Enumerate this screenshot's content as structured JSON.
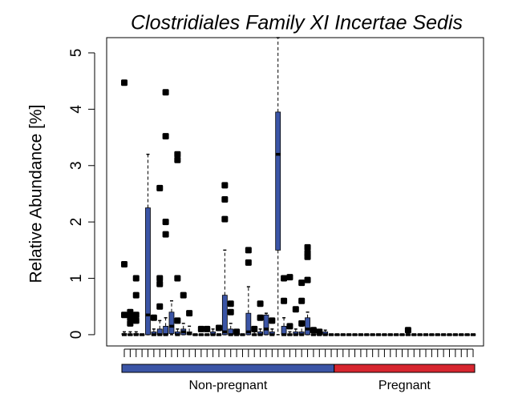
{
  "chart_data": {
    "type": "box",
    "title": "Clostridiales Family XI Incertae Sedis",
    "y_label": "Relative Abundance [%]",
    "ylim": [
      -0.2,
      5.27
    ],
    "yticks": [
      0,
      1,
      2,
      3,
      4,
      5
    ],
    "box_color": "#3b55a6",
    "groups": [
      {
        "name": "Non-pregnant",
        "color": "#3b55a6",
        "categories": [
          null,
          null,
          null,
          null,
          null,
          null,
          null,
          null,
          null,
          null,
          null,
          null,
          null,
          null,
          null,
          null,
          null,
          null,
          null,
          null,
          null,
          null,
          null,
          null,
          null,
          null,
          null,
          null,
          null,
          null,
          null,
          null,
          null,
          null,
          null,
          null
        ]
      },
      {
        "name": "Pregnant",
        "color": "#d7262f",
        "categories": [
          null,
          null,
          null,
          null,
          null,
          null,
          null,
          null,
          null,
          null,
          null,
          null,
          null,
          null,
          null,
          null,
          null,
          null,
          null,
          null,
          null,
          null,
          null,
          null
        ]
      }
    ],
    "boxes": [
      {
        "stats": [
          0,
          0,
          0,
          0.02,
          0.05
        ],
        "outliers": [
          4.47,
          1.25,
          0.35
        ]
      },
      {
        "stats": [
          0,
          0,
          0,
          0,
          0.05
        ],
        "outliers": [
          0.4,
          0.3,
          0.2
        ]
      },
      {
        "stats": [
          0,
          0,
          0,
          0.02,
          0.05
        ],
        "outliers": [
          1.0,
          0.7,
          0.35,
          0.25
        ]
      },
      {
        "stats": [
          0,
          0,
          0,
          0,
          0
        ],
        "outliers": []
      },
      {
        "stats": [
          0,
          0,
          0.35,
          2.25,
          3.2
        ],
        "outliers": []
      },
      {
        "stats": [
          0,
          0,
          0,
          0.05,
          0.1
        ],
        "outliers": [
          0.3
        ]
      },
      {
        "stats": [
          0,
          0,
          0,
          0.1,
          0.25
        ],
        "outliers": [
          2.6,
          1.0,
          0.9,
          0.5
        ]
      },
      {
        "stats": [
          0,
          0,
          0,
          0.15,
          0.3
        ],
        "outliers": [
          4.3,
          3.52,
          2.0,
          1.78
        ]
      },
      {
        "stats": [
          0,
          0.02,
          0.15,
          0.4,
          0.6
        ],
        "outliers": []
      },
      {
        "stats": [
          0,
          0,
          0,
          0.05,
          0.1
        ],
        "outliers": [
          3.2,
          3.1,
          1.0,
          0.25
        ]
      },
      {
        "stats": [
          0,
          0,
          0.05,
          0.1,
          0.2
        ],
        "outliers": [
          0.7
        ]
      },
      {
        "stats": [
          0,
          0,
          0.02,
          0.05,
          0.15
        ],
        "outliers": [
          0.38
        ]
      },
      {
        "stats": [
          0,
          0,
          0,
          0,
          0
        ],
        "outliers": []
      },
      {
        "stats": [
          0,
          0,
          0,
          0,
          0
        ],
        "outliers": [
          0.1
        ]
      },
      {
        "stats": [
          0,
          0,
          0,
          0,
          0
        ],
        "outliers": [
          0.1
        ]
      },
      {
        "stats": [
          0,
          0,
          0,
          0.05,
          0.1
        ],
        "outliers": []
      },
      {
        "stats": [
          0,
          0,
          0,
          0,
          0
        ],
        "outliers": [
          0.12
        ]
      },
      {
        "stats": [
          0,
          0,
          0.05,
          0.7,
          1.5
        ],
        "outliers": [
          2.65,
          2.4,
          2.05
        ]
      },
      {
        "stats": [
          0,
          0,
          0,
          0.1,
          0.2
        ],
        "outliers": [
          0.55,
          0.4
        ]
      },
      {
        "stats": [
          0,
          0,
          0,
          0,
          0
        ],
        "outliers": [
          0.05
        ]
      },
      {
        "stats": [
          0,
          0,
          0,
          0,
          0
        ],
        "outliers": []
      },
      {
        "stats": [
          0,
          0,
          0.05,
          0.38,
          0.85
        ],
        "outliers": [
          1.5,
          1.28
        ]
      },
      {
        "stats": [
          0,
          0,
          0,
          0,
          0.05
        ],
        "outliers": [
          0.1
        ]
      },
      {
        "stats": [
          0,
          0,
          0,
          0.05,
          0.1
        ],
        "outliers": [
          0.55,
          0.3
        ]
      },
      {
        "stats": [
          0,
          0,
          0.1,
          0.35,
          0.38
        ],
        "outliers": []
      },
      {
        "stats": [
          0,
          0,
          0,
          0.05,
          0.1
        ],
        "outliers": [
          0.25
        ]
      },
      {
        "stats": [
          0,
          1.5,
          3.2,
          3.95,
          5.27
        ],
        "outliers": []
      },
      {
        "stats": [
          0,
          0,
          0,
          0.15,
          0.3
        ],
        "outliers": [
          1.0,
          0.6
        ]
      },
      {
        "stats": [
          0,
          0,
          0,
          0,
          0.05
        ],
        "outliers": [
          1.02,
          0.15
        ]
      },
      {
        "stats": [
          0,
          0,
          0,
          0.05,
          0.1
        ],
        "outliers": [
          0.45
        ]
      },
      {
        "stats": [
          0,
          0,
          0,
          0.05,
          0.15
        ],
        "outliers": [
          0.92,
          0.6,
          0.2
        ]
      },
      {
        "stats": [
          0,
          0,
          0.1,
          0.3,
          0.4
        ],
        "outliers": [
          1.55,
          1.45,
          1.38,
          0.97
        ]
      },
      {
        "stats": [
          0,
          0,
          0,
          0,
          0
        ],
        "outliers": [
          0.08
        ]
      },
      {
        "stats": [
          0,
          0,
          0,
          0,
          0
        ],
        "outliers": [
          0.05
        ]
      },
      {
        "stats": [
          0,
          0,
          0,
          0.05,
          0.08
        ],
        "outliers": []
      },
      {
        "stats": [
          0,
          0,
          0,
          0,
          0
        ],
        "outliers": []
      },
      {
        "stats": [
          0,
          0,
          0,
          0,
          0
        ],
        "outliers": []
      },
      {
        "stats": [
          0,
          0,
          0,
          0,
          0
        ],
        "outliers": []
      },
      {
        "stats": [
          0,
          0,
          0,
          0,
          0
        ],
        "outliers": []
      },
      {
        "stats": [
          0,
          0,
          0,
          0,
          0
        ],
        "outliers": []
      },
      {
        "stats": [
          0,
          0,
          0,
          0,
          0
        ],
        "outliers": []
      },
      {
        "stats": [
          0,
          0,
          0,
          0,
          0
        ],
        "outliers": []
      },
      {
        "stats": [
          0,
          0,
          0,
          0,
          0
        ],
        "outliers": []
      },
      {
        "stats": [
          0,
          0,
          0,
          0,
          0
        ],
        "outliers": []
      },
      {
        "stats": [
          0,
          0,
          0,
          0,
          0
        ],
        "outliers": []
      },
      {
        "stats": [
          0,
          0,
          0,
          0,
          0
        ],
        "outliers": []
      },
      {
        "stats": [
          0,
          0,
          0,
          0,
          0
        ],
        "outliers": []
      },
      {
        "stats": [
          0,
          0,
          0,
          0,
          0
        ],
        "outliers": []
      },
      {
        "stats": [
          0,
          0,
          0,
          0,
          0.05
        ],
        "outliers": [
          0.08
        ]
      },
      {
        "stats": [
          0,
          0,
          0,
          0,
          0
        ],
        "outliers": []
      },
      {
        "stats": [
          0,
          0,
          0,
          0,
          0
        ],
        "outliers": []
      },
      {
        "stats": [
          0,
          0,
          0,
          0,
          0
        ],
        "outliers": []
      },
      {
        "stats": [
          0,
          0,
          0,
          0,
          0
        ],
        "outliers": []
      },
      {
        "stats": [
          0,
          0,
          0,
          0,
          0
        ],
        "outliers": []
      },
      {
        "stats": [
          0,
          0,
          0,
          0,
          0
        ],
        "outliers": []
      },
      {
        "stats": [
          0,
          0,
          0,
          0,
          0
        ],
        "outliers": []
      },
      {
        "stats": [
          0,
          0,
          0,
          0,
          0
        ],
        "outliers": []
      },
      {
        "stats": [
          0,
          0,
          0,
          0,
          0
        ],
        "outliers": []
      },
      {
        "stats": [
          0,
          0,
          0,
          0,
          0
        ],
        "outliers": []
      },
      {
        "stats": [
          0,
          0,
          0,
          0,
          0
        ],
        "outliers": []
      }
    ]
  }
}
